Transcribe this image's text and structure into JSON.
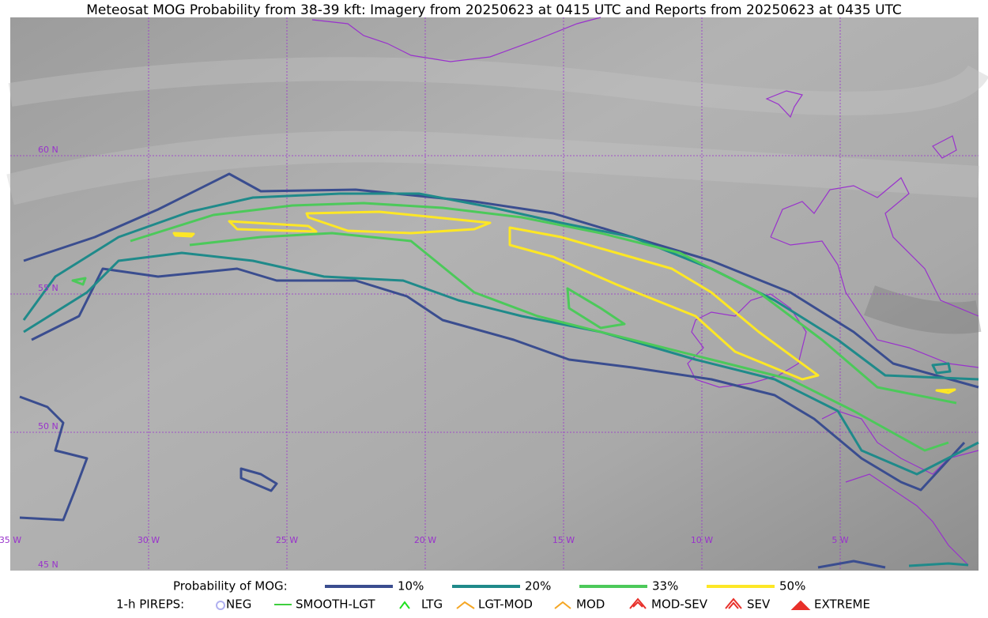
{
  "title": "Meteosat MOG Probability from 38-39 kft: Imagery from 20250623 at 0415 UTC and Reports from 20250623 at 0435 UTC",
  "grid_labels": {
    "latitudes": [
      "60 N",
      "55 N",
      "50 N",
      "45 N"
    ],
    "longitudes": [
      "35 W",
      "30 W",
      "25 W",
      "20 W",
      "15 W",
      "10 W",
      "5 W"
    ]
  },
  "legend": {
    "probability": {
      "label": "Probability of MOG:",
      "entries": [
        {
          "name": "10%",
          "color": "#3a4d8f"
        },
        {
          "name": "20%",
          "color": "#1f8a8a"
        },
        {
          "name": "33%",
          "color": "#4cc95a"
        },
        {
          "name": "50%",
          "color": "#fde725"
        }
      ]
    },
    "pireps": {
      "label": "1-h PIREPS:",
      "entries": [
        {
          "name": "NEG",
          "color": "#b0b0f0"
        },
        {
          "name": "SMOOTH-LGT",
          "color": "#3ecf3e"
        },
        {
          "name": "LTG",
          "color": "#1ee01e"
        },
        {
          "name": "LGT-MOD",
          "color": "#f5a623"
        },
        {
          "name": "MOD",
          "color": "#f5a623"
        },
        {
          "name": "MOD-SEV",
          "color": "#e8302a"
        },
        {
          "name": "SEV",
          "color": "#e8302a"
        },
        {
          "name": "EXTREME",
          "color": "#e8302a"
        }
      ]
    }
  }
}
